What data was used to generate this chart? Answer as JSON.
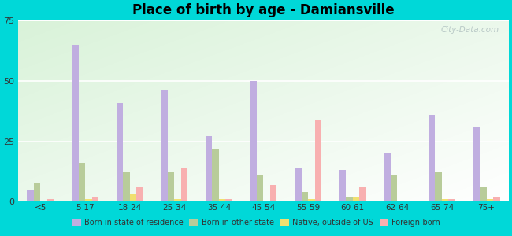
{
  "title": "Place of birth by age - Damiansville",
  "categories": [
    "<5",
    "5-17",
    "18-24",
    "25-34",
    "35-44",
    "45-54",
    "55-59",
    "60-61",
    "62-64",
    "65-74",
    "75+"
  ],
  "series": {
    "Born in state of residence": [
      5,
      65,
      41,
      46,
      27,
      50,
      14,
      13,
      20,
      36,
      31
    ],
    "Born in other state": [
      8,
      16,
      12,
      12,
      22,
      11,
      4,
      2,
      11,
      12,
      6
    ],
    "Native, outside of US": [
      0,
      1,
      3,
      1,
      1,
      0,
      1,
      2,
      0,
      1,
      1
    ],
    "Foreign-born": [
      1,
      2,
      6,
      14,
      1,
      7,
      34,
      6,
      0,
      1,
      2
    ]
  },
  "colors": {
    "Born in state of residence": "#c0aee0",
    "Born in other state": "#b8cc9a",
    "Native, outside of US": "#f0e070",
    "Foreign-born": "#f8b0b0"
  },
  "ylim": [
    0,
    75
  ],
  "yticks": [
    0,
    25,
    50,
    75
  ],
  "outer_bg": "#00d8d8",
  "bar_width": 0.15,
  "legend_labels": [
    "Born in state of residence",
    "Born in other state",
    "Native, outside of US",
    "Foreign-born"
  ],
  "watermark": "City-Data.com"
}
